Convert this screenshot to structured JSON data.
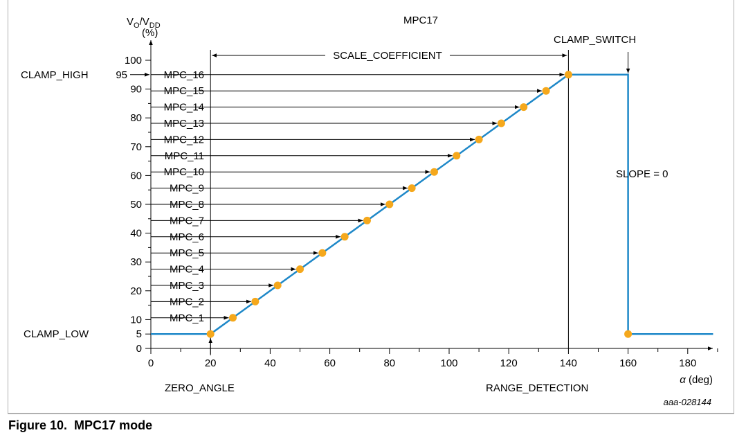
{
  "caption": {
    "prefix": "Figure 10.",
    "title": "MPC17 mode"
  },
  "chart_data": {
    "type": "line",
    "title": "MPC17",
    "ylabel_line1": "VO/VDD",
    "ylabel_main": "V",
    "ylabel_sub1": "O",
    "ylabel_mid": "/V",
    "ylabel_sub2": "DD",
    "ylabel_line2": "(%)",
    "xlabel_italic": "α",
    "xlabel_rest": " (deg)",
    "xlim": [
      0,
      200
    ],
    "ylim": [
      0,
      100
    ],
    "x_ticks": [
      0,
      20,
      40,
      60,
      80,
      100,
      120,
      140,
      160,
      180
    ],
    "y_ticks": [
      0,
      5,
      10,
      20,
      30,
      40,
      50,
      60,
      70,
      80,
      90,
      95,
      100
    ],
    "y_tick_labels": [
      "0",
      "5",
      "10",
      "20",
      "30",
      "40",
      "50",
      "60",
      "70",
      "80",
      "90",
      "95",
      "100"
    ],
    "series": [
      {
        "x": [
          0,
          20,
          140,
          160,
          160,
          200
        ],
        "y": [
          5,
          5,
          95,
          95,
          5,
          5
        ]
      }
    ],
    "points": [
      {
        "label": "MPC_1",
        "x": 27.5,
        "y": 10.625
      },
      {
        "label": "MPC_2",
        "x": 35,
        "y": 16.25
      },
      {
        "label": "MPC_3",
        "x": 42.5,
        "y": 21.875
      },
      {
        "label": "MPC_4",
        "x": 50,
        "y": 27.5
      },
      {
        "label": "MPC_5",
        "x": 57.5,
        "y": 33.125
      },
      {
        "label": "MPC_6",
        "x": 65,
        "y": 38.75
      },
      {
        "label": "MPC_7",
        "x": 72.5,
        "y": 44.375
      },
      {
        "label": "MPC_8",
        "x": 80,
        "y": 50
      },
      {
        "label": "MPC_9",
        "x": 87.5,
        "y": 55.625
      },
      {
        "label": "MPC_10",
        "x": 95,
        "y": 61.25
      },
      {
        "label": "MPC_11",
        "x": 102.5,
        "y": 66.875
      },
      {
        "label": "MPC_12",
        "x": 110,
        "y": 72.5
      },
      {
        "label": "MPC_13",
        "x": 117.5,
        "y": 78.125
      },
      {
        "label": "MPC_14",
        "x": 125,
        "y": 83.75
      },
      {
        "label": "MPC_15",
        "x": 132.5,
        "y": 89.375
      },
      {
        "label": "MPC_16",
        "x": 140,
        "y": 95
      }
    ],
    "extra_points": [
      {
        "x": 20,
        "y": 5
      },
      {
        "x": 160,
        "y": 5
      }
    ],
    "annotations": {
      "clamp_high": "CLAMP_HIGH",
      "clamp_low": "CLAMP_LOW",
      "clamp_switch": "CLAMP_SWITCH",
      "scale_coefficient": "SCALE_COEFFICIENT",
      "slope": "SLOPE = 0",
      "zero_angle": "ZERO_ANGLE",
      "range_detection": "RANGE_DETECTION",
      "figure_id": "aaa-028144"
    },
    "colors": {
      "line": "#1e88c8",
      "point": "#f5a81c"
    }
  }
}
